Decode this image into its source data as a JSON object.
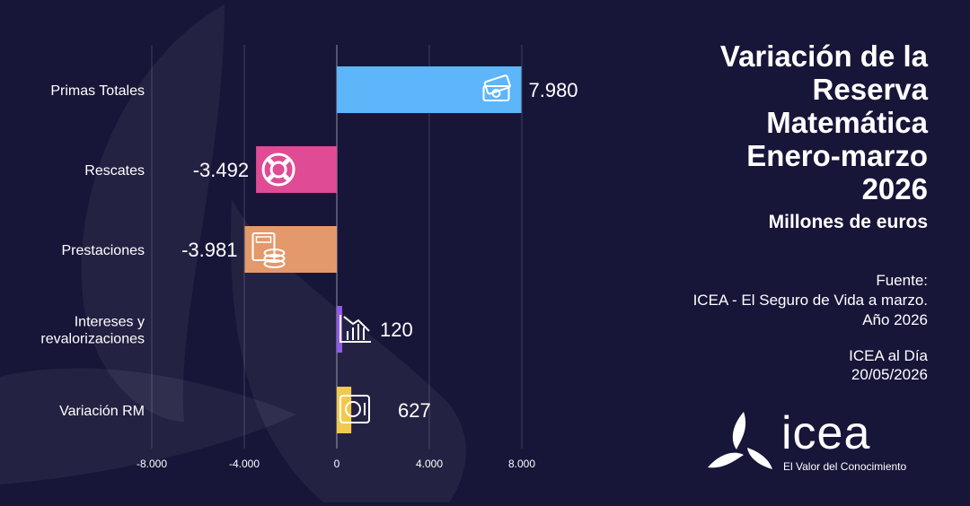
{
  "panel": {
    "title_lines": [
      "Variación de la",
      "Reserva",
      "Matemática",
      "Enero-marzo",
      "2026"
    ],
    "subtitle": "Millones de euros",
    "source_label": "Fuente:",
    "source_line1": "ICEA - El Seguro de Vida a marzo.",
    "source_line2": "Año 2026",
    "pub_name": "ICEA al Día",
    "pub_date": "20/05/2026"
  },
  "logo": {
    "name": "icea",
    "tagline": "El Valor del Conocimiento"
  },
  "colors": {
    "background": "#171538",
    "primas_totales": "#5cb6f9",
    "rescates": "#df4b94",
    "prestaciones": "#e3996b",
    "intereses": "#8f5be8",
    "variacion_rm": "#f2c94c"
  },
  "chart_data": {
    "type": "bar",
    "orientation": "horizontal",
    "categories": [
      "Primas Totales",
      "Rescates",
      "Prestaciones",
      "Intereses y revalorizaciones",
      "Variación RM"
    ],
    "category_lines": [
      [
        "Primas Totales"
      ],
      [
        "Rescates"
      ],
      [
        "Prestaciones"
      ],
      [
        "Intereses y",
        "revalorizaciones"
      ],
      [
        "Variación RM"
      ]
    ],
    "values": [
      7980,
      -3492,
      -3981,
      120,
      627
    ],
    "value_labels": [
      "7.980",
      "-3.492",
      "-3.981",
      "120",
      "627"
    ],
    "bar_colors": [
      "#5cb6f9",
      "#df4b94",
      "#e3996b",
      "#8f5be8",
      "#f2c94c"
    ],
    "bar_icons": [
      "money-stack-icon",
      "lifebuoy-icon",
      "calculator-coins-icon",
      "falling-chart-icon",
      "safe-icon"
    ],
    "xlim": [
      -8000,
      8000
    ],
    "xticks": [
      -8000,
      -4000,
      0,
      4000,
      8000
    ],
    "xtick_labels": [
      "-8.000",
      "-4.000",
      "0",
      "4.000",
      "8.000"
    ],
    "title": "Variación de la Reserva Matemática Enero-marzo 2026",
    "subtitle": "Millones de euros",
    "xlabel": "",
    "ylabel": "",
    "grid": true,
    "legend": "none"
  }
}
